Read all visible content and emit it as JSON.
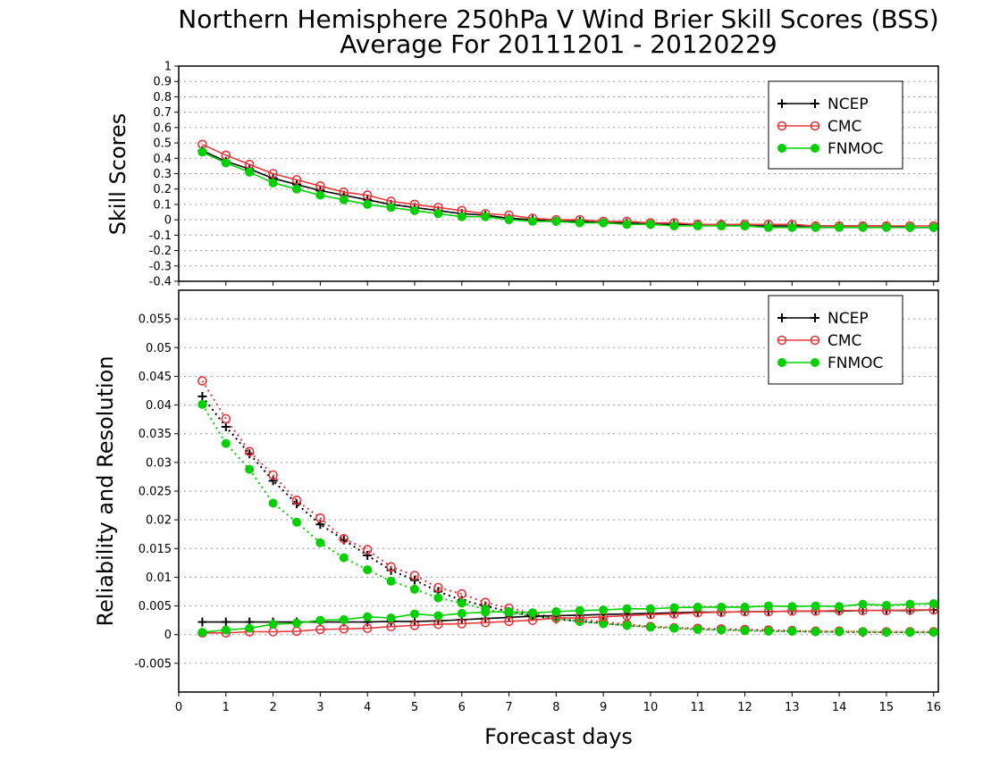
{
  "title_line1": "Northern Hemisphere 250hPa V Wind Brier Skill Scores (BSS)",
  "title_line2": "Average For 20111201 - 20120229",
  "xlabel": "Forecast days",
  "colors": {
    "NCEP": "#000000",
    "CMC": "#e8383c",
    "FNMOC": "#00d000"
  },
  "chart_data": [
    {
      "type": "line",
      "panel": "top",
      "ylabel": "Skill Scores",
      "xlim": [
        0,
        16.1
      ],
      "ylim": [
        -0.4,
        1
      ],
      "x_ticks": [
        0,
        1,
        2,
        3,
        4,
        5,
        6,
        7,
        8,
        9,
        10,
        11,
        12,
        13,
        14,
        15,
        16
      ],
      "y_ticks": [
        "1",
        "0.9",
        "0.8",
        "0.7",
        "0.6",
        "0.5",
        "0.4",
        "0.3",
        "0.2",
        "0.1",
        "0",
        "-0.1",
        "-0.2",
        "-0.3",
        "-0.4"
      ],
      "grid": "dotted horizontal",
      "legend": {
        "position": "top-right",
        "entries": [
          "NCEP",
          "CMC",
          "FNMOC"
        ]
      },
      "x": [
        0.5,
        1,
        1.5,
        2,
        2.5,
        3,
        3.5,
        4,
        4.5,
        5,
        5.5,
        6,
        6.5,
        7,
        7.5,
        8,
        8.5,
        9,
        9.5,
        10,
        10.5,
        11,
        11.5,
        12,
        12.5,
        13,
        13.5,
        14,
        14.5,
        15,
        15.5,
        16
      ],
      "series": [
        {
          "name": "NCEP",
          "marker": "plus",
          "style": "solid",
          "values": [
            0.45,
            0.38,
            0.33,
            0.27,
            0.23,
            0.19,
            0.16,
            0.13,
            0.1,
            0.08,
            0.06,
            0.04,
            0.03,
            0.01,
            0.0,
            -0.01,
            -0.01,
            -0.02,
            -0.02,
            -0.03,
            -0.03,
            -0.03,
            -0.03,
            -0.04,
            -0.04,
            -0.04,
            -0.04,
            -0.04,
            -0.04,
            -0.04,
            -0.05,
            -0.05
          ]
        },
        {
          "name": "CMC",
          "marker": "open-circle",
          "style": "solid",
          "values": [
            0.49,
            0.42,
            0.36,
            0.3,
            0.26,
            0.22,
            0.18,
            0.16,
            0.12,
            0.1,
            0.08,
            0.06,
            0.04,
            0.03,
            0.01,
            0.0,
            0.0,
            -0.01,
            -0.01,
            -0.02,
            -0.02,
            -0.03,
            -0.03,
            -0.03,
            -0.03,
            -0.03,
            -0.04,
            -0.04,
            -0.04,
            -0.04,
            -0.04,
            -0.04
          ]
        },
        {
          "name": "FNMOC",
          "marker": "filled-circle",
          "style": "solid",
          "values": [
            0.44,
            0.37,
            0.31,
            0.24,
            0.2,
            0.16,
            0.13,
            0.1,
            0.08,
            0.06,
            0.04,
            0.02,
            0.02,
            0.0,
            -0.01,
            -0.01,
            -0.02,
            -0.02,
            -0.03,
            -0.03,
            -0.04,
            -0.04,
            -0.04,
            -0.04,
            -0.05,
            -0.05,
            -0.05,
            -0.05,
            -0.05,
            -0.05,
            -0.05,
            -0.05
          ]
        }
      ]
    },
    {
      "type": "line",
      "panel": "bottom",
      "ylabel": "Reliability and Resolution",
      "xlim": [
        0,
        16.1
      ],
      "ylim": [
        -0.01,
        0.06
      ],
      "x_ticks": [
        0,
        1,
        2,
        3,
        4,
        5,
        6,
        7,
        8,
        9,
        10,
        11,
        12,
        13,
        14,
        15,
        16
      ],
      "y_ticks": [
        "0.055",
        "0.05",
        "0.045",
        "0.04",
        "0.035",
        "0.03",
        "0.025",
        "0.02",
        "0.015",
        "0.01",
        "0.005",
        "0",
        "-0.005"
      ],
      "grid": "dotted horizontal",
      "legend": {
        "position": "top-right",
        "entries": [
          "NCEP",
          "CMC",
          "FNMOC"
        ]
      },
      "x": [
        0.5,
        1,
        1.5,
        2,
        2.5,
        3,
        3.5,
        4,
        4.5,
        5,
        5.5,
        6,
        6.5,
        7,
        7.5,
        8,
        8.5,
        9,
        9.5,
        10,
        10.5,
        11,
        11.5,
        12,
        12.5,
        13,
        13.5,
        14,
        14.5,
        15,
        15.5,
        16
      ],
      "series": [
        {
          "name": "NCEP",
          "group": "reliability",
          "marker": "plus",
          "style": "dotted",
          "values": [
            0.0415,
            0.0362,
            0.0315,
            0.0268,
            0.0228,
            0.0192,
            0.0165,
            0.0138,
            0.0112,
            0.0095,
            0.0075,
            0.006,
            0.005,
            0.004,
            0.0033,
            0.0027,
            0.0023,
            0.002,
            0.0016,
            0.0014,
            0.0012,
            0.001,
            0.0009,
            0.0008,
            0.0007,
            0.0006,
            0.0005,
            0.0005,
            0.0004,
            0.0004,
            0.0004,
            0.0004
          ]
        },
        {
          "name": "CMC",
          "group": "reliability",
          "marker": "open-circle",
          "style": "dotted",
          "values": [
            0.0442,
            0.0376,
            0.0319,
            0.0278,
            0.0234,
            0.0203,
            0.0167,
            0.0148,
            0.0118,
            0.0103,
            0.0082,
            0.0071,
            0.0056,
            0.0046,
            0.0037,
            0.003,
            0.0027,
            0.0022,
            0.0018,
            0.0014,
            0.0012,
            0.0011,
            0.001,
            0.0009,
            0.0008,
            0.0007,
            0.0006,
            0.0006,
            0.0005,
            0.0005,
            0.0005,
            0.0005
          ]
        },
        {
          "name": "FNMOC",
          "group": "reliability",
          "marker": "filled-circle",
          "style": "dotted",
          "values": [
            0.0401,
            0.0333,
            0.0288,
            0.0229,
            0.0196,
            0.016,
            0.0134,
            0.0113,
            0.0093,
            0.0079,
            0.0064,
            0.0055,
            0.0044,
            0.0037,
            0.0033,
            0.0028,
            0.0023,
            0.0019,
            0.0016,
            0.0013,
            0.0011,
            0.0009,
            0.0008,
            0.0007,
            0.0006,
            0.0006,
            0.0005,
            0.0005,
            0.0005,
            0.0004,
            0.0004,
            0.0004
          ]
        },
        {
          "name": "NCEP",
          "group": "resolution",
          "marker": "plus",
          "style": "solid",
          "values": [
            0.0022,
            0.0022,
            0.0022,
            0.0022,
            0.0022,
            0.0022,
            0.0022,
            0.0022,
            0.0023,
            0.0023,
            0.0024,
            0.0026,
            0.0028,
            0.003,
            0.0032,
            0.0033,
            0.0034,
            0.0035,
            0.0036,
            0.0037,
            0.0038,
            0.0039,
            0.0039,
            0.004,
            0.004,
            0.0041,
            0.0041,
            0.0041,
            0.0042,
            0.0042,
            0.0042,
            0.0043
          ]
        },
        {
          "name": "CMC",
          "group": "resolution",
          "marker": "open-circle",
          "style": "solid",
          "values": [
            0.0003,
            0.0003,
            0.0005,
            0.0005,
            0.0006,
            0.0009,
            0.001,
            0.0011,
            0.0014,
            0.0016,
            0.0018,
            0.0019,
            0.0021,
            0.0023,
            0.0025,
            0.0029,
            0.0029,
            0.0031,
            0.0033,
            0.0035,
            0.0036,
            0.0038,
            0.0039,
            0.004,
            0.004,
            0.0041,
            0.0041,
            0.0042,
            0.0042,
            0.0042,
            0.0043,
            0.0043
          ]
        },
        {
          "name": "FNMOC",
          "group": "resolution",
          "marker": "filled-circle",
          "style": "solid",
          "values": [
            0.0004,
            0.0008,
            0.0011,
            0.0018,
            0.002,
            0.0025,
            0.0026,
            0.0031,
            0.0029,
            0.0036,
            0.0033,
            0.0037,
            0.0039,
            0.004,
            0.0038,
            0.004,
            0.0042,
            0.0043,
            0.0045,
            0.0045,
            0.0047,
            0.0048,
            0.0048,
            0.0048,
            0.005,
            0.0049,
            0.005,
            0.0049,
            0.0053,
            0.0051,
            0.0053,
            0.0054
          ]
        }
      ]
    }
  ]
}
